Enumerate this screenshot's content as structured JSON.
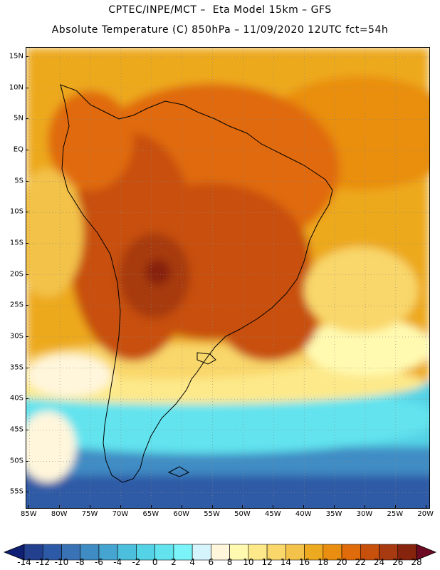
{
  "header": {
    "line1": "CPTEC/INPE/MCT –  Eta Model 15km – GFS",
    "line2": "Absolute Temperature (C) 850hPa – 11/09/2020 12UTC fct=54h"
  },
  "map": {
    "lat_labels": [
      "15N",
      "10N",
      "5N",
      "EQ",
      "5S",
      "10S",
      "15S",
      "20S",
      "25S",
      "30S",
      "35S",
      "40S",
      "45S",
      "50S",
      "55S"
    ],
    "lat_values": [
      15,
      10,
      5,
      0,
      -5,
      -10,
      -15,
      -20,
      -25,
      -30,
      -35,
      -40,
      -45,
      -50,
      -55
    ],
    "lon_labels": [
      "85W",
      "80W",
      "75W",
      "70W",
      "65W",
      "60W",
      "55W",
      "50W",
      "45W",
      "40W",
      "35W",
      "30W",
      "25W",
      "20W"
    ],
    "lon_values": [
      -85,
      -80,
      -75,
      -70,
      -65,
      -60,
      -55,
      -50,
      -45,
      -40,
      -35,
      -30,
      -25,
      -20
    ],
    "extent": {
      "lon_min": -85.5,
      "lon_max": -19.5,
      "lat_min": -57.5,
      "lat_max": 16.5
    }
  },
  "colorbar": {
    "labels": [
      "-14",
      "-12",
      "-10",
      "-8",
      "-6",
      "-4",
      "-2",
      "0",
      "2",
      "4",
      "6",
      "8",
      "10",
      "12",
      "14",
      "16",
      "18",
      "20",
      "22",
      "24",
      "26",
      "28"
    ],
    "colors": [
      "#23408f",
      "#2d5aa6",
      "#3a72b6",
      "#3f8cc4",
      "#46a4d0",
      "#4bbfdc",
      "#55d3e6",
      "#62e3ee",
      "#7af4f8",
      "#d6f4fb",
      "#fff6dc",
      "#fffab0",
      "#fde98a",
      "#f9d76a",
      "#f3c24a",
      "#eda91f",
      "#e98e10",
      "#e06b0b",
      "#c8500d",
      "#a73a10",
      "#86240e"
    ],
    "low_color": "#0f1f73",
    "high_color": "#6b0a22"
  }
}
